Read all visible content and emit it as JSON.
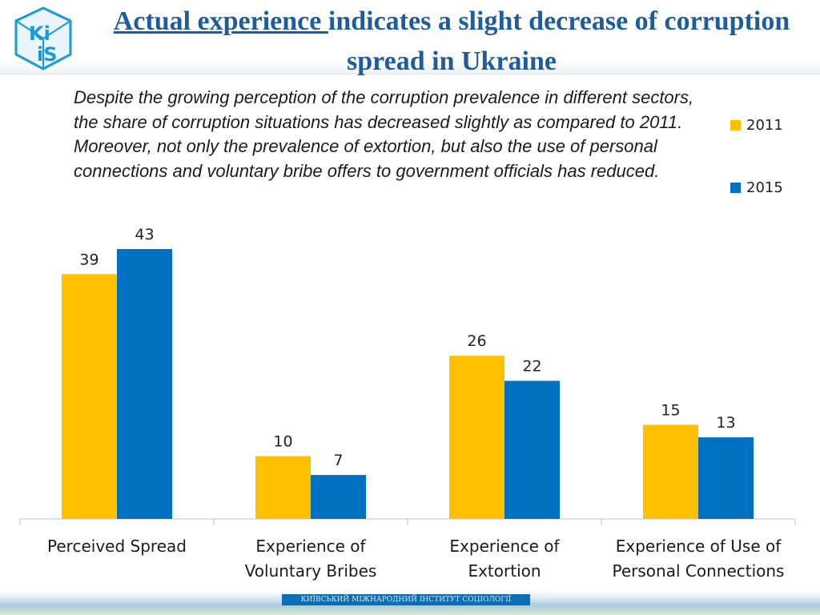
{
  "header": {
    "logo_text": "KiiS",
    "title_lead": "Actual experience ",
    "title_rest": "indicates a slight decrease of corruption spread in Ukraine"
  },
  "description": "Despite the growing perception of the corruption prevalence in different sectors, the share of corruption situations has decreased slightly as compared to 2011. Moreover,  not only the prevalence of extortion, but also the use of personal connections and voluntary bribe offers to  government officials has reduced.",
  "colors": {
    "accent": "#1f5c99",
    "series_2011": "#FFC000",
    "series_2015": "#0070C0",
    "axis": "#BFBFBF"
  },
  "footer": {
    "text": "КИЇВСЬКИЙ МІЖНАРОДНИЙ ІНСТИТУТ СОЦІОЛОГІЇ"
  },
  "chart_data": {
    "type": "bar",
    "title": "",
    "xlabel": "",
    "ylabel": "",
    "ylim": [
      0,
      43
    ],
    "grid": false,
    "legend_position": "top-right",
    "categories": [
      [
        "Perceived Spread"
      ],
      [
        "Experience of",
        "Voluntary Bribes"
      ],
      [
        "Experience of",
        "Extortion"
      ],
      [
        "Experience of Use of",
        "Personal Connections"
      ]
    ],
    "series": [
      {
        "name": "2011",
        "color": "#FFC000",
        "values": [
          39,
          10,
          26,
          15
        ]
      },
      {
        "name": "2015",
        "color": "#0070C0",
        "values": [
          43,
          7,
          22,
          13
        ]
      }
    ]
  }
}
